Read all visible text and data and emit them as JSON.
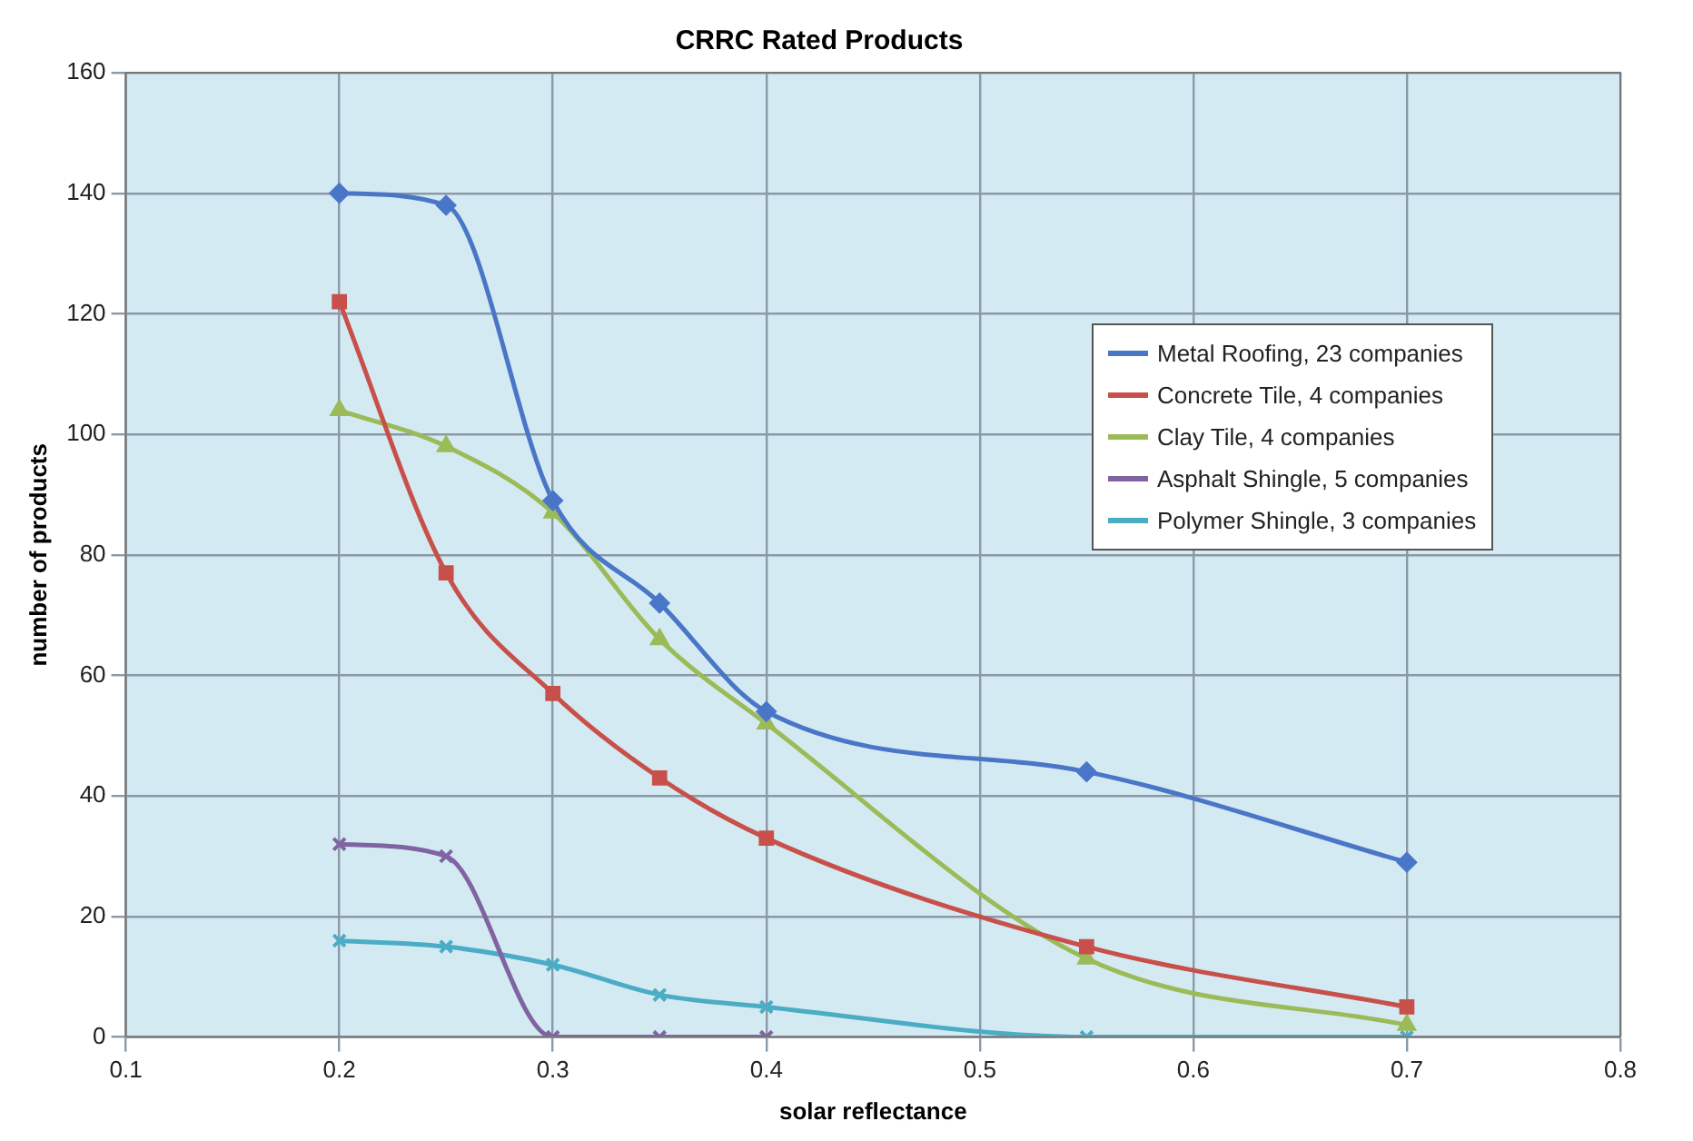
{
  "chart_data": {
    "type": "line",
    "title": "CRRC Rated Products",
    "xlabel": "solar reflectance",
    "ylabel": "number of products",
    "xlim": [
      0.1,
      0.8
    ],
    "xticks": [
      0.1,
      0.2,
      0.3,
      0.4,
      0.5,
      0.6,
      0.7,
      0.8
    ],
    "ylim": [
      0,
      160
    ],
    "yticks": [
      0,
      20,
      40,
      60,
      80,
      100,
      120,
      140,
      160
    ],
    "grid": true,
    "legend": "right",
    "line_style": "solid",
    "series": [
      {
        "name": "Metal Roofing, 23 companies",
        "color": "#4a76c8",
        "marker": "diamond",
        "x": [
          0.2,
          0.25,
          0.3,
          0.35,
          0.4,
          0.55,
          0.7
        ],
        "values": [
          140,
          138,
          89,
          72,
          54,
          44,
          29
        ]
      },
      {
        "name": "Concrete Tile, 4 companies",
        "color": "#c8504a",
        "marker": "square",
        "x": [
          0.2,
          0.25,
          0.3,
          0.35,
          0.4,
          0.55,
          0.7
        ],
        "values": [
          122,
          77,
          57,
          43,
          33,
          15,
          5
        ]
      },
      {
        "name": "Clay Tile, 4 companies",
        "color": "#9bbb59",
        "marker": "triangle",
        "x": [
          0.2,
          0.25,
          0.3,
          0.35,
          0.4,
          0.55,
          0.7
        ],
        "values": [
          104,
          98,
          87,
          66,
          52,
          13,
          2
        ]
      },
      {
        "name": "Asphalt Shingle, 5 companies",
        "color": "#8064a2",
        "marker": "cross",
        "x": [
          0.2,
          0.25,
          0.3,
          0.35,
          0.4
        ],
        "values": [
          32,
          30,
          0,
          0,
          0
        ]
      },
      {
        "name": "Polymer Shingle, 3 companies",
        "color": "#4bacc6",
        "marker": "cross",
        "x": [
          0.2,
          0.25,
          0.3,
          0.35,
          0.4,
          0.55,
          0.7
        ],
        "values": [
          16,
          15,
          12,
          7,
          5,
          0,
          0
        ]
      }
    ]
  }
}
